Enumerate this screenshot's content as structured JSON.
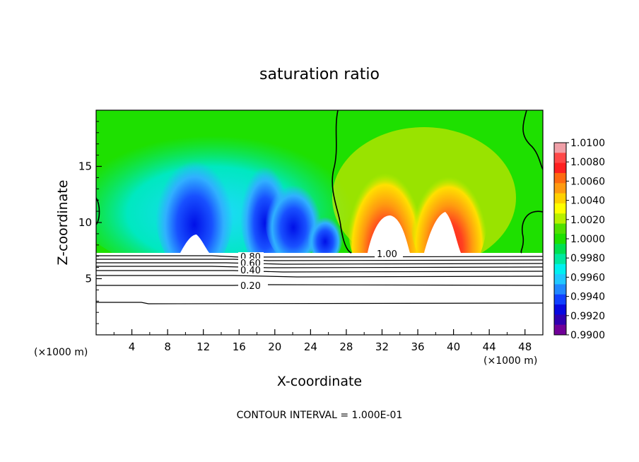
{
  "chart_data": {
    "type": "heatmap",
    "title": "saturation ratio",
    "xlabel": "X-coordinate",
    "ylabel": "Z-coordinate",
    "x_unit_left": "(×1000 m)",
    "x_unit_right": "(×1000 m)",
    "footer": "CONTOUR INTERVAL = 1.000E-01",
    "xlim": [
      0,
      50
    ],
    "ylim": [
      0,
      20
    ],
    "x_ticks": [
      4,
      8,
      12,
      16,
      20,
      24,
      28,
      32,
      36,
      40,
      44,
      48
    ],
    "y_ticks": [
      5,
      10,
      15
    ],
    "colorbar": {
      "min": 0.99,
      "max": 1.01,
      "labels": [
        "1.0100",
        "1.0080",
        "1.0060",
        "1.0040",
        "1.0020",
        "1.0000",
        "0.9980",
        "0.9960",
        "0.9940",
        "0.9920",
        "0.9900"
      ],
      "colors": [
        "#f0a0a8",
        "#ff4848",
        "#ff2020",
        "#ff6a10",
        "#ff9a10",
        "#ffd000",
        "#ffff00",
        "#b8f000",
        "#50e000",
        "#1ee000",
        "#00e050",
        "#00e8a0",
        "#00f0f0",
        "#20c8ff",
        "#2088ff",
        "#1040ff",
        "#0808e0",
        "#3000b0",
        "#700098"
      ]
    },
    "contours": [
      {
        "label": "0.80",
        "z": 7.0
      },
      {
        "label": "0.60",
        "z": 6.7
      },
      {
        "label": "0.40",
        "z": 5.8
      },
      {
        "label": "0.20",
        "z": 4.4
      },
      {
        "label": "1.00",
        "z": 7.2
      }
    ]
  }
}
